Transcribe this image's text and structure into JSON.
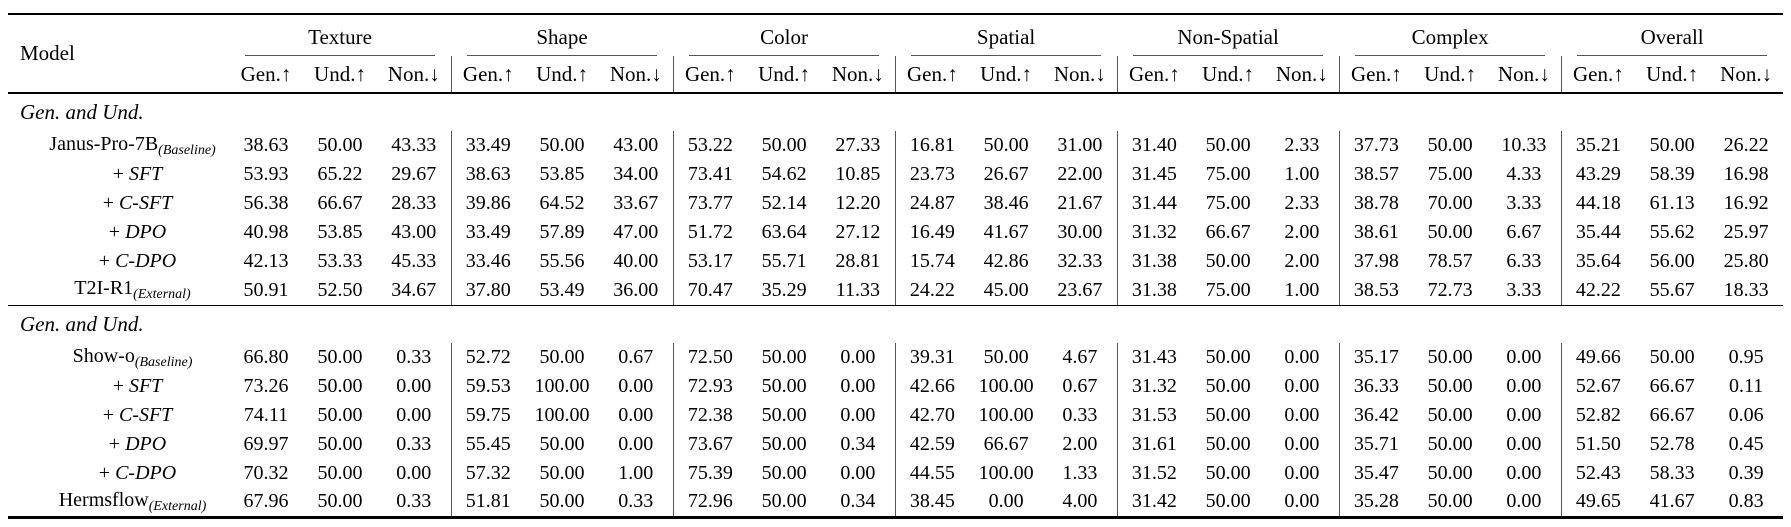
{
  "table": {
    "model_header": "Model",
    "groups": [
      "Texture",
      "Shape",
      "Color",
      "Spatial",
      "Non-Spatial",
      "Complex",
      "Overall"
    ],
    "subcolumns": [
      "Gen.↑",
      "Und.↑",
      "Non.↓"
    ],
    "sections": [
      {
        "header": "Gen. and Und.",
        "rows": [
          {
            "name": "Janus-Pro-7B",
            "subscript": "(Baseline)",
            "values": [
              "38.63",
              "50.00",
              "43.33",
              "33.49",
              "50.00",
              "43.00",
              "53.22",
              "50.00",
              "27.33",
              "16.81",
              "50.00",
              "31.00",
              "31.40",
              "50.00",
              "2.33",
              "37.73",
              "50.00",
              "10.33",
              "35.21",
              "50.00",
              "26.22"
            ]
          },
          {
            "name": "SFT",
            "prefix": "+",
            "values": [
              "53.93",
              "65.22",
              "29.67",
              "38.63",
              "53.85",
              "34.00",
              "73.41",
              "54.62",
              "10.85",
              "23.73",
              "26.67",
              "22.00",
              "31.45",
              "75.00",
              "1.00",
              "38.57",
              "75.00",
              "4.33",
              "43.29",
              "58.39",
              "16.98"
            ]
          },
          {
            "name": "C-SFT",
            "prefix": "+",
            "values": [
              "56.38",
              "66.67",
              "28.33",
              "39.86",
              "64.52",
              "33.67",
              "73.77",
              "52.14",
              "12.20",
              "24.87",
              "38.46",
              "21.67",
              "31.44",
              "75.00",
              "2.33",
              "38.78",
              "70.00",
              "3.33",
              "44.18",
              "61.13",
              "16.92"
            ]
          },
          {
            "name": "DPO",
            "prefix": "+",
            "values": [
              "40.98",
              "53.85",
              "43.00",
              "33.49",
              "57.89",
              "47.00",
              "51.72",
              "63.64",
              "27.12",
              "16.49",
              "41.67",
              "30.00",
              "31.32",
              "66.67",
              "2.00",
              "38.61",
              "50.00",
              "6.67",
              "35.44",
              "55.62",
              "25.97"
            ]
          },
          {
            "name": "C-DPO",
            "prefix": "+",
            "values": [
              "42.13",
              "53.33",
              "45.33",
              "33.46",
              "55.56",
              "40.00",
              "53.17",
              "55.71",
              "28.81",
              "15.74",
              "42.86",
              "32.33",
              "31.38",
              "50.00",
              "2.00",
              "37.98",
              "78.57",
              "6.33",
              "35.64",
              "56.00",
              "25.80"
            ]
          },
          {
            "name": "T2I-R1",
            "subscript": "(External)",
            "values": [
              "50.91",
              "52.50",
              "34.67",
              "37.80",
              "53.49",
              "36.00",
              "70.47",
              "35.29",
              "11.33",
              "24.22",
              "45.00",
              "23.67",
              "31.38",
              "75.00",
              "1.00",
              "38.53",
              "72.73",
              "3.33",
              "42.22",
              "55.67",
              "18.33"
            ]
          }
        ]
      },
      {
        "header": "Gen. and Und.",
        "rows": [
          {
            "name": "Show-o",
            "subscript": "(Baseline)",
            "values": [
              "66.80",
              "50.00",
              "0.33",
              "52.72",
              "50.00",
              "0.67",
              "72.50",
              "50.00",
              "0.00",
              "39.31",
              "50.00",
              "4.67",
              "31.43",
              "50.00",
              "0.00",
              "35.17",
              "50.00",
              "0.00",
              "49.66",
              "50.00",
              "0.95"
            ]
          },
          {
            "name": "SFT",
            "prefix": "+",
            "values": [
              "73.26",
              "50.00",
              "0.00",
              "59.53",
              "100.00",
              "0.00",
              "72.93",
              "50.00",
              "0.00",
              "42.66",
              "100.00",
              "0.67",
              "31.32",
              "50.00",
              "0.00",
              "36.33",
              "50.00",
              "0.00",
              "52.67",
              "66.67",
              "0.11"
            ]
          },
          {
            "name": "C-SFT",
            "prefix": "+",
            "values": [
              "74.11",
              "50.00",
              "0.00",
              "59.75",
              "100.00",
              "0.00",
              "72.38",
              "50.00",
              "0.00",
              "42.70",
              "100.00",
              "0.33",
              "31.53",
              "50.00",
              "0.00",
              "36.42",
              "50.00",
              "0.00",
              "52.82",
              "66.67",
              "0.06"
            ]
          },
          {
            "name": "DPO",
            "prefix": "+",
            "values": [
              "69.97",
              "50.00",
              "0.33",
              "55.45",
              "50.00",
              "0.00",
              "73.67",
              "50.00",
              "0.34",
              "42.59",
              "66.67",
              "2.00",
              "31.61",
              "50.00",
              "0.00",
              "35.71",
              "50.00",
              "0.00",
              "51.50",
              "52.78",
              "0.45"
            ]
          },
          {
            "name": "C-DPO",
            "prefix": "+",
            "values": [
              "70.32",
              "50.00",
              "0.00",
              "57.32",
              "50.00",
              "1.00",
              "75.39",
              "50.00",
              "0.00",
              "44.55",
              "100.00",
              "1.33",
              "31.52",
              "50.00",
              "0.00",
              "35.47",
              "50.00",
              "0.00",
              "52.43",
              "58.33",
              "0.39"
            ]
          },
          {
            "name": "Hermsflow",
            "subscript": "(External)",
            "values": [
              "67.96",
              "50.00",
              "0.33",
              "51.81",
              "50.00",
              "0.33",
              "72.96",
              "50.00",
              "0.34",
              "38.45",
              "0.00",
              "4.00",
              "31.42",
              "50.00",
              "0.00",
              "35.28",
              "50.00",
              "0.00",
              "49.65",
              "41.67",
              "0.83"
            ]
          }
        ]
      }
    ]
  }
}
